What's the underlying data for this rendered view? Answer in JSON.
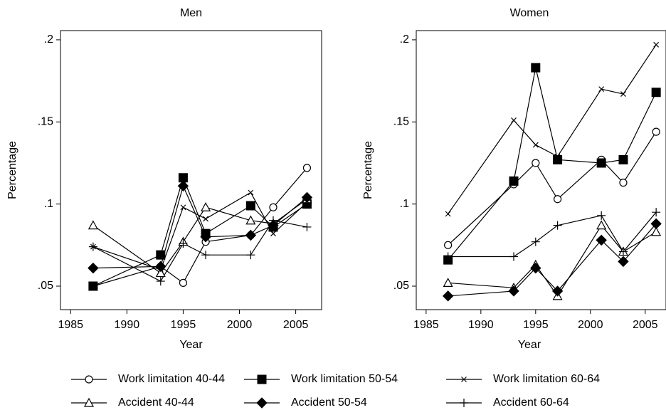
{
  "chart_data": [
    {
      "type": "line",
      "title": "Men",
      "xlabel": "Year",
      "ylabel": "Percentage",
      "x": [
        1987,
        1993,
        1995,
        1997,
        2001,
        2003,
        2006
      ],
      "xlim": [
        1984.1,
        2007.3
      ],
      "ylim": [
        0.0357,
        0.2056
      ],
      "xticks": [
        1985,
        1990,
        1995,
        2000,
        2005
      ],
      "yticks": [
        {
          "value": 0.05,
          "label": ".05"
        },
        {
          "value": 0.1,
          "label": ".1"
        },
        {
          "value": 0.15,
          "label": ".15"
        },
        {
          "value": 0.2,
          "label": ".2"
        }
      ],
      "legend": "bottom",
      "series": [
        {
          "name": "Work limitation 40-44",
          "color": "#000000",
          "marker": "circle",
          "values": [
            0.05,
            0.062,
            0.052,
            0.077,
            0.081,
            0.098,
            0.122
          ]
        },
        {
          "name": "Work limitation 50-54",
          "color": "#000000",
          "marker": "square",
          "values": [
            0.05,
            0.069,
            0.116,
            0.082,
            0.099,
            0.086,
            0.1
          ]
        },
        {
          "name": "Work limitation 60-64",
          "color": "#000000",
          "marker": "x",
          "values": [
            0.074,
            0.06,
            0.098,
            0.091,
            0.107,
            0.082,
            0.101
          ]
        },
        {
          "name": "Accident 40-44",
          "color": "#000000",
          "marker": "triangle",
          "values": [
            0.087,
            0.058,
            0.077,
            0.098,
            0.09,
            0.088,
            0.103
          ]
        },
        {
          "name": "Accident 50-54",
          "color": "#000000",
          "marker": "diamond",
          "values": [
            0.061,
            0.062,
            0.111,
            0.08,
            0.081,
            0.087,
            0.104
          ]
        },
        {
          "name": "Accident 60-64",
          "color": "#000000",
          "marker": "plus",
          "values": [
            0.074,
            0.053,
            0.076,
            0.069,
            0.069,
            0.09,
            0.086
          ]
        }
      ]
    },
    {
      "type": "line",
      "title": "Women",
      "xlabel": "Year",
      "ylabel": "Percentage",
      "x": [
        1987,
        1993,
        1995,
        1997,
        2001,
        2003,
        2006
      ],
      "xlim": [
        1984.1,
        2006.9
      ],
      "ylim": [
        0.0357,
        0.2056
      ],
      "xticks": [
        1985,
        1990,
        1995,
        2000,
        2005
      ],
      "yticks": [
        {
          "value": 0.05,
          "label": ".05"
        },
        {
          "value": 0.1,
          "label": ".1"
        },
        {
          "value": 0.15,
          "label": ".15"
        },
        {
          "value": 0.2,
          "label": ".2"
        }
      ],
      "series": [
        {
          "color": "#000000",
          "marker": "circle",
          "values": [
            0.075,
            0.112,
            0.125,
            0.103,
            0.127,
            0.113,
            0.144
          ]
        },
        {
          "color": "#000000",
          "marker": "square",
          "values": [
            0.066,
            0.114,
            0.183,
            0.127,
            0.125,
            0.127,
            0.168
          ]
        },
        {
          "color": "#000000",
          "marker": "x",
          "values": [
            0.094,
            0.151,
            0.136,
            0.129,
            0.17,
            0.167,
            0.197
          ]
        },
        {
          "color": "#000000",
          "marker": "triangle",
          "values": [
            0.052,
            0.049,
            0.063,
            0.044,
            0.087,
            0.071,
            0.083
          ]
        },
        {
          "color": "#000000",
          "marker": "diamond",
          "values": [
            0.044,
            0.047,
            0.061,
            0.047,
            0.078,
            0.065,
            0.088
          ]
        },
        {
          "color": "#000000",
          "marker": "plus",
          "values": [
            0.068,
            0.068,
            0.077,
            0.087,
            0.093,
            0.071,
            0.095
          ]
        }
      ]
    }
  ]
}
